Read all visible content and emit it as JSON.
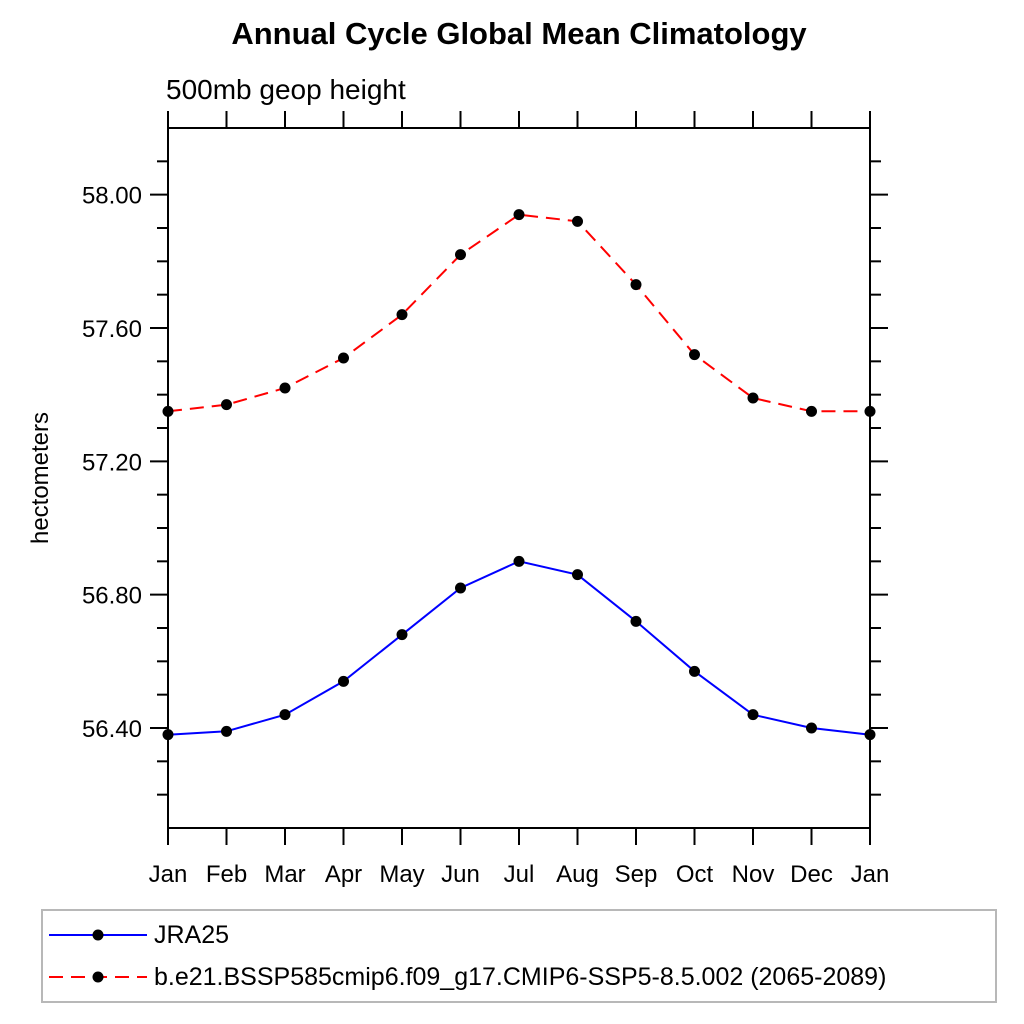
{
  "chart_data": {
    "type": "line",
    "title": "Annual Cycle Global Mean Climatology",
    "subtitle": "500mb geop height",
    "ylabel": "hectometers",
    "xlabel": "",
    "x_categories": [
      "Jan",
      "Feb",
      "Mar",
      "Apr",
      "May",
      "Jun",
      "Jul",
      "Aug",
      "Sep",
      "Oct",
      "Nov",
      "Dec",
      "Jan"
    ],
    "ylim": [
      56.1,
      58.2
    ],
    "y_major_ticks": [
      "58.00",
      "57.60",
      "57.20",
      "56.80",
      "56.40"
    ],
    "y_major_tick_values": [
      58.0,
      57.6,
      57.2,
      56.8,
      56.4
    ],
    "y_minor_step": 0.1,
    "y_major_step": 0.4,
    "grid": false,
    "legend_position": "bottom-outside-box",
    "series": [
      {
        "name": "JRA25",
        "color": "#0000ff",
        "line_style": "solid",
        "marker": "filled-circle",
        "marker_color": "#000000",
        "values": [
          56.38,
          56.39,
          56.44,
          56.54,
          56.68,
          56.82,
          56.9,
          56.86,
          56.72,
          56.57,
          56.44,
          56.4,
          56.38
        ]
      },
      {
        "name": "b.e21.BSSP585cmip6.f09_g17.CMIP6-SSP5-8.5.002 (2065-2089)",
        "color": "#ff0000",
        "line_style": "dashed",
        "marker": "filled-circle",
        "marker_color": "#000000",
        "values": [
          57.35,
          57.37,
          57.42,
          57.51,
          57.64,
          57.82,
          57.94,
          57.92,
          57.73,
          57.52,
          57.39,
          57.35,
          57.35
        ]
      }
    ],
    "colors": {
      "axis": "#000000",
      "background": "#ffffff",
      "legend_border": "#b8b8b8",
      "series_blue": "#0000ff",
      "series_red": "#ff0000",
      "marker": "#000000"
    }
  }
}
